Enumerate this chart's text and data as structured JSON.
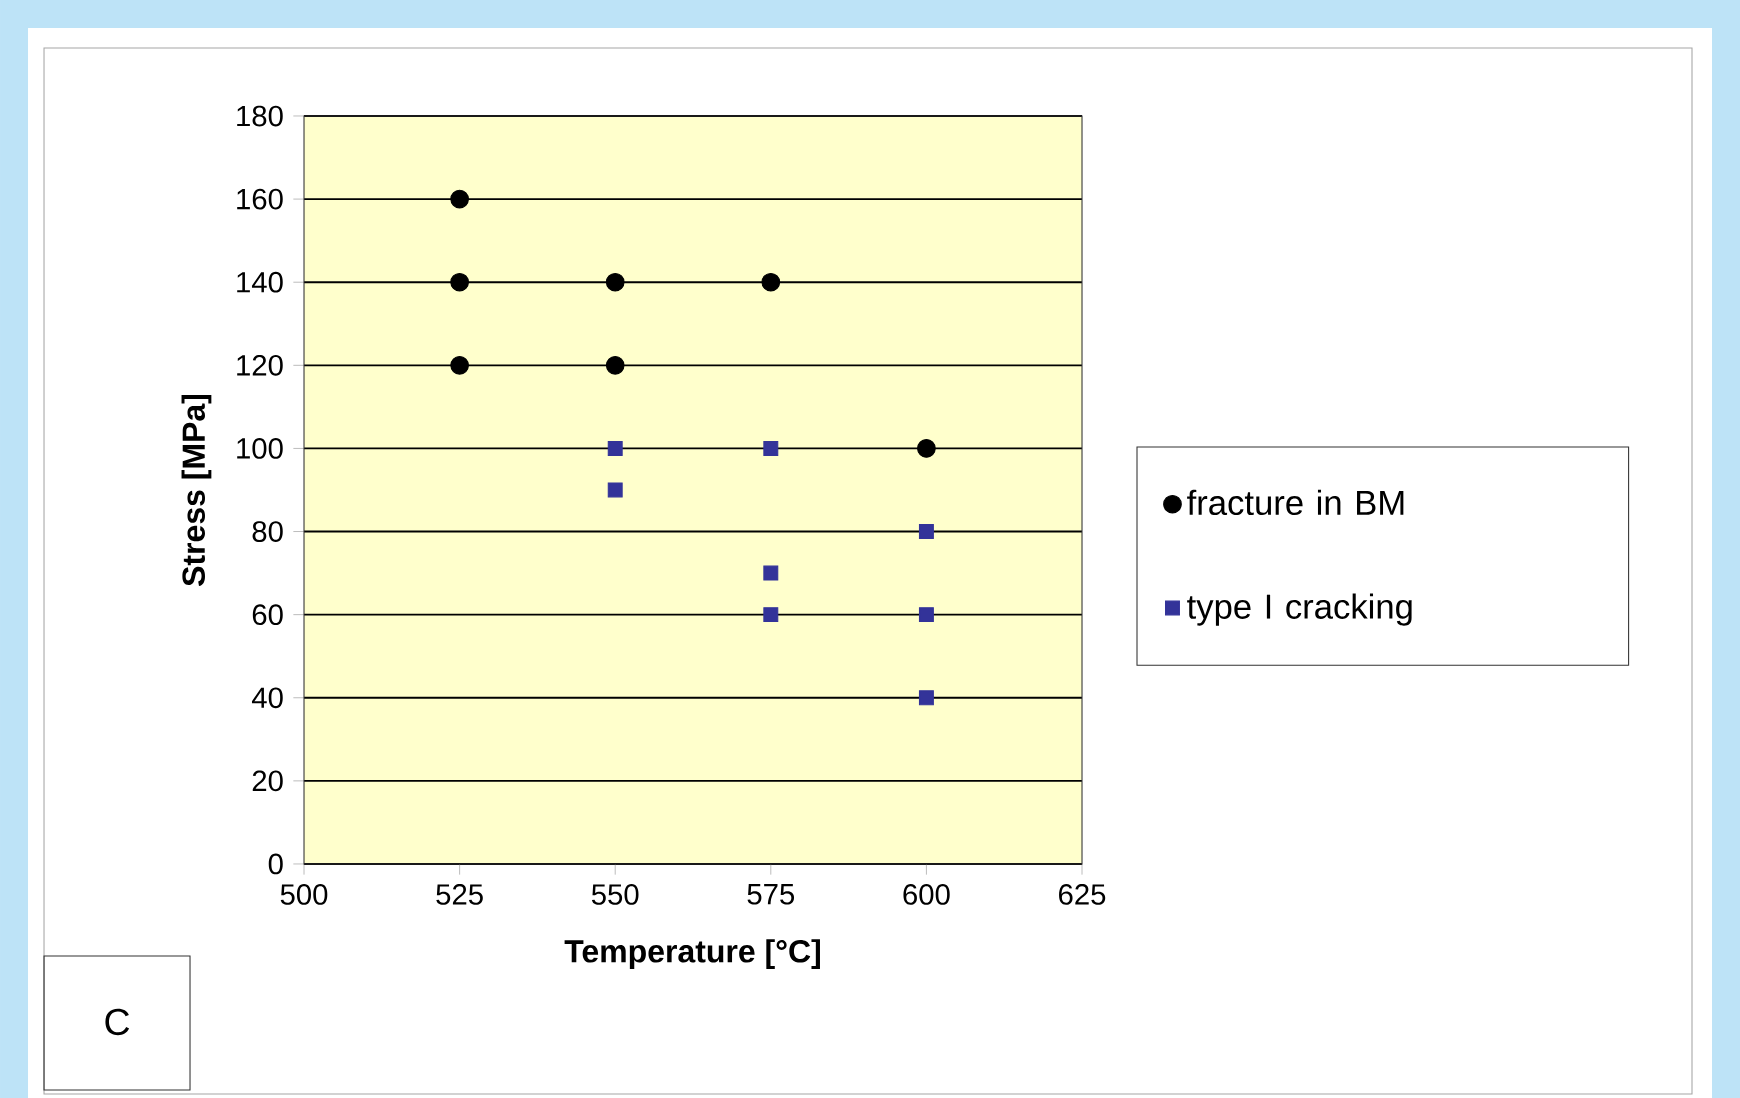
{
  "chart_data": {
    "type": "scatter",
    "xlabel": "Temperature [°C]",
    "ylabel": "Stress [MPa]",
    "xlim": [
      500,
      625
    ],
    "xticks": [
      500,
      525,
      550,
      575,
      600,
      625
    ],
    "ylim": [
      0,
      180
    ],
    "yticks": [
      0,
      20,
      40,
      60,
      80,
      100,
      120,
      140,
      160,
      180
    ],
    "grid": "y",
    "legend": "right",
    "series": [
      {
        "name": "fracture in BM",
        "color": "#000000",
        "marker": "circle",
        "x": [
          525,
          525,
          525,
          550,
          550,
          575,
          600
        ],
        "values": [
          160,
          140,
          120,
          140,
          120,
          140,
          100
        ]
      },
      {
        "name": "type I cracking",
        "color": "#333399",
        "marker": "square",
        "x": [
          550,
          550,
          575,
          575,
          575,
          600,
          600,
          600
        ],
        "values": [
          100,
          90,
          100,
          70,
          60,
          80,
          60,
          40
        ]
      }
    ],
    "annotations": [
      "C"
    ]
  }
}
